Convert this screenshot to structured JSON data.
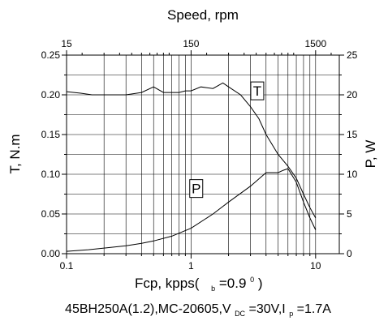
{
  "chart_data": {
    "type": "line",
    "top_axis": {
      "label": "Speed, rpm",
      "ticks": [
        {
          "value": 15,
          "label": "15"
        },
        {
          "value": 150,
          "label": "150"
        },
        {
          "value": 1500,
          "label": "1500"
        }
      ]
    },
    "x_axis": {
      "label_main": "Fcp, kpps(",
      "label_sub": "b",
      "label_tail": "=0.9",
      "label_sup": "0",
      "label_close": ")",
      "scale": "log",
      "range": [
        0.1,
        15.5
      ],
      "ticks": [
        {
          "value": 0.1,
          "label": "0.1"
        },
        {
          "value": 1,
          "label": "1"
        },
        {
          "value": 10,
          "label": "10"
        }
      ]
    },
    "y_left": {
      "label": "T, N.m",
      "range": [
        0,
        0.25
      ],
      "ticks": [
        {
          "value": 0,
          "label": "0.00"
        },
        {
          "value": 0.05,
          "label": "0.05"
        },
        {
          "value": 0.1,
          "label": "0.10"
        },
        {
          "value": 0.15,
          "label": "0.15"
        },
        {
          "value": 0.2,
          "label": "0.20"
        },
        {
          "value": 0.25,
          "label": "0.25"
        }
      ]
    },
    "y_right": {
      "label": "P, W",
      "range": [
        0,
        25
      ],
      "ticks": [
        {
          "value": 0,
          "label": "0"
        },
        {
          "value": 5,
          "label": "5"
        },
        {
          "value": 10,
          "label": "10"
        },
        {
          "value": 15,
          "label": "15"
        },
        {
          "value": 20,
          "label": "20"
        },
        {
          "value": 25,
          "label": "25"
        }
      ]
    },
    "grid": true,
    "series": [
      {
        "name": "T",
        "axis": "left",
        "label_at": {
          "x": 3.4,
          "y": 0.205
        },
        "points": [
          [
            0.1,
            0.204
          ],
          [
            0.13,
            0.202
          ],
          [
            0.16,
            0.2
          ],
          [
            0.2,
            0.2
          ],
          [
            0.3,
            0.2
          ],
          [
            0.4,
            0.203
          ],
          [
            0.5,
            0.21
          ],
          [
            0.6,
            0.203
          ],
          [
            0.7,
            0.203
          ],
          [
            0.8,
            0.203
          ],
          [
            0.9,
            0.205
          ],
          [
            1.0,
            0.205
          ],
          [
            1.2,
            0.21
          ],
          [
            1.5,
            0.208
          ],
          [
            1.8,
            0.215
          ],
          [
            2.0,
            0.21
          ],
          [
            2.5,
            0.2
          ],
          [
            3.0,
            0.185
          ],
          [
            3.5,
            0.17
          ],
          [
            4.0,
            0.15
          ],
          [
            5.0,
            0.125
          ],
          [
            6.0,
            0.11
          ],
          [
            7.0,
            0.095
          ],
          [
            8.0,
            0.075
          ],
          [
            9.0,
            0.058
          ],
          [
            10.0,
            0.045
          ]
        ]
      },
      {
        "name": "P",
        "axis": "right",
        "label_at": {
          "x": 1.1,
          "y": 8.2
        },
        "points": [
          [
            0.1,
            0.3
          ],
          [
            0.15,
            0.5
          ],
          [
            0.2,
            0.7
          ],
          [
            0.3,
            1.0
          ],
          [
            0.4,
            1.3
          ],
          [
            0.5,
            1.6
          ],
          [
            0.7,
            2.2
          ],
          [
            1.0,
            3.2
          ],
          [
            1.5,
            5.0
          ],
          [
            2.0,
            6.5
          ],
          [
            3.0,
            8.5
          ],
          [
            4.0,
            10.2
          ],
          [
            5.0,
            10.2
          ],
          [
            5.5,
            10.5
          ],
          [
            6.0,
            10.7
          ],
          [
            7.0,
            9.0
          ],
          [
            8.0,
            6.5
          ],
          [
            9.0,
            4.5
          ],
          [
            10.0,
            3.0
          ]
        ]
      }
    ],
    "caption": {
      "part1": "45BH250A(1.2),MC-20605,V",
      "sub1": "DC",
      "part2": "=30V,I",
      "sub2": "p",
      "part3": "=1.7A"
    }
  }
}
